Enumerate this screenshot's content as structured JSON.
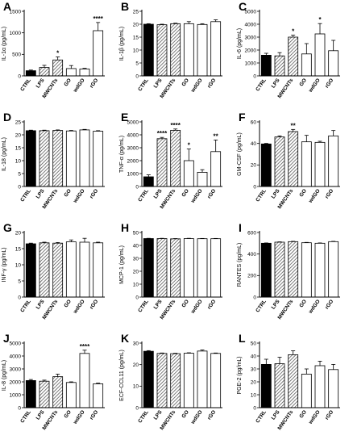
{
  "colors": {
    "ctrl": "#000000",
    "outline": "#000000",
    "open": "#ffffff"
  },
  "chart_data": [
    {
      "type": "bar",
      "panel": "A",
      "ylabel": "IL-1α (pg/mL)",
      "ylim": [
        0,
        1500
      ],
      "yticks": [
        0,
        500,
        1000,
        1500
      ],
      "categories": [
        "CTRL",
        "LPS",
        "MWCNTs",
        "GO",
        "wdGO",
        "rGO"
      ],
      "values": [
        120,
        195,
        370,
        170,
        160,
        1050
      ],
      "errors": [
        15,
        50,
        70,
        70,
        15,
        190
      ],
      "fills": [
        "black",
        "hatch",
        "hatch",
        "white",
        "white",
        "white"
      ],
      "sig": [
        "",
        "",
        "*",
        "",
        "",
        "****"
      ]
    },
    {
      "type": "bar",
      "panel": "B",
      "ylabel": "IL-1β (pg/mL)",
      "ylim": [
        0,
        25
      ],
      "yticks": [
        0,
        5,
        10,
        15,
        20,
        25
      ],
      "categories": [
        "CTRL",
        "LPS",
        "MWCNTs",
        "GO",
        "wdGO",
        "rGO"
      ],
      "values": [
        20,
        19.8,
        20.2,
        20.2,
        19.9,
        21
      ],
      "errors": [
        0.2,
        0.2,
        0.2,
        0.8,
        0.3,
        0.7
      ],
      "fills": [
        "black",
        "hatch",
        "hatch",
        "white",
        "white",
        "white"
      ],
      "sig": [
        "",
        "",
        "",
        "",
        "",
        ""
      ]
    },
    {
      "type": "bar",
      "panel": "C",
      "ylabel": "IL-6 (pg/mL)",
      "ylim": [
        0,
        5000
      ],
      "yticks": [
        0,
        1000,
        2000,
        3000,
        4000,
        5000
      ],
      "categories": [
        "CTRL",
        "LPS",
        "MWCNTs",
        "GO",
        "wdGO",
        "rGO"
      ],
      "values": [
        1600,
        1550,
        3000,
        1700,
        3250,
        1950
      ],
      "errors": [
        150,
        250,
        150,
        800,
        800,
        800
      ],
      "fills": [
        "black",
        "hatch",
        "hatch",
        "white",
        "white",
        "white"
      ],
      "sig": [
        "",
        "",
        "*",
        "",
        "*",
        ""
      ]
    },
    {
      "type": "bar",
      "panel": "D",
      "ylabel": "IL-18 (pg/mL)",
      "ylim": [
        0,
        25
      ],
      "yticks": [
        0,
        5,
        10,
        15,
        20,
        25
      ],
      "categories": [
        "CTRL",
        "LPS",
        "MWCNTs",
        "GO",
        "wdGO",
        "rGO"
      ],
      "values": [
        21.6,
        21.6,
        21.7,
        21.5,
        21.9,
        21.4
      ],
      "errors": [
        0.2,
        0.2,
        0.2,
        0.2,
        0.2,
        0.2
      ],
      "fills": [
        "black",
        "hatch",
        "hatch",
        "white",
        "white",
        "white"
      ],
      "sig": [
        "",
        "",
        "",
        "",
        "",
        ""
      ]
    },
    {
      "type": "bar",
      "panel": "E",
      "ylabel": "TNF-α (pg/mL)",
      "ylim": [
        0,
        5000
      ],
      "yticks": [
        0,
        1000,
        2000,
        3000,
        4000,
        5000
      ],
      "categories": [
        "CTRL",
        "LPS",
        "MWCNTs",
        "GO",
        "wdGO",
        "rGO"
      ],
      "values": [
        750,
        3700,
        4350,
        2000,
        1100,
        2700
      ],
      "errors": [
        150,
        100,
        100,
        900,
        200,
        900
      ],
      "fills": [
        "black",
        "hatch",
        "hatch",
        "white",
        "white",
        "white"
      ],
      "sig": [
        "",
        "****",
        "****",
        "*",
        "",
        "**"
      ]
    },
    {
      "type": "bar",
      "panel": "F",
      "ylabel": "GM-CSF (pg/mL)",
      "ylim": [
        0,
        60
      ],
      "yticks": [
        0,
        20,
        40,
        60
      ],
      "categories": [
        "CTRL",
        "LPS",
        "MWCNTs",
        "GO",
        "wdGO",
        "rGO"
      ],
      "values": [
        39.5,
        46,
        51,
        41.5,
        41,
        47
      ],
      "errors": [
        0.5,
        1,
        2,
        6,
        1,
        5
      ],
      "fills": [
        "black",
        "hatch",
        "hatch",
        "white",
        "white",
        "white"
      ],
      "sig": [
        "",
        "",
        "**",
        "",
        "",
        ""
      ]
    },
    {
      "type": "bar",
      "panel": "G",
      "ylabel": "INF-γ (pg/mL)",
      "ylim": [
        0,
        20
      ],
      "yticks": [
        0,
        5,
        10,
        15,
        20
      ],
      "categories": [
        "CTRL",
        "LPS",
        "MWCNTs",
        "GO",
        "wdGO",
        "rGO"
      ],
      "values": [
        16.5,
        16.8,
        16.7,
        17.1,
        17,
        16.8
      ],
      "errors": [
        0.2,
        0.2,
        0.2,
        0.6,
        1.2,
        0.2
      ],
      "fills": [
        "black",
        "hatch",
        "hatch",
        "white",
        "white",
        "white"
      ],
      "sig": [
        "",
        "",
        "",
        "",
        "",
        ""
      ]
    },
    {
      "type": "bar",
      "panel": "H",
      "ylabel": "MCP-1 (pg/mL)",
      "ylim": [
        0,
        50
      ],
      "yticks": [
        0,
        10,
        20,
        30,
        40,
        50
      ],
      "categories": [
        "CTRL",
        "LPS",
        "MWCNTs",
        "GO",
        "wdGO",
        "rGO"
      ],
      "values": [
        45.3,
        45.3,
        45.1,
        45.3,
        45.2,
        45.2
      ],
      "errors": [
        0.2,
        0.2,
        0.2,
        0.2,
        0.2,
        0.2
      ],
      "fills": [
        "black",
        "hatch",
        "hatch",
        "white",
        "white",
        "white"
      ],
      "sig": [
        "",
        "",
        "",
        "",
        "",
        ""
      ]
    },
    {
      "type": "bar",
      "panel": "I",
      "ylabel": "RANTES (pg/mL)",
      "ylim": [
        0,
        600
      ],
      "yticks": [
        0,
        200,
        400,
        600
      ],
      "categories": [
        "CTRL",
        "LPS",
        "MWCNTs",
        "GO",
        "wdGO",
        "rGO"
      ],
      "values": [
        500,
        510,
        515,
        505,
        500,
        515
      ],
      "errors": [
        3,
        3,
        3,
        3,
        3,
        3
      ],
      "fills": [
        "black",
        "hatch",
        "hatch",
        "white",
        "white",
        "white"
      ],
      "sig": [
        "",
        "",
        "",
        "",
        "",
        ""
      ]
    },
    {
      "type": "bar",
      "panel": "J",
      "ylabel": "IL-8 (pg/mL)",
      "ylim": [
        0,
        5000
      ],
      "yticks": [
        0,
        1000,
        2000,
        3000,
        4000,
        5000
      ],
      "categories": [
        "CTRL",
        "LPS",
        "MWCNTs",
        "GO",
        "wdGO",
        "rGO"
      ],
      "values": [
        2100,
        2050,
        2400,
        1950,
        4200,
        1850
      ],
      "errors": [
        80,
        80,
        200,
        50,
        250,
        50
      ],
      "fills": [
        "black",
        "hatch",
        "hatch",
        "white",
        "white",
        "white"
      ],
      "sig": [
        "",
        "",
        "",
        "",
        "****",
        ""
      ]
    },
    {
      "type": "bar",
      "panel": "K",
      "ylabel": "ECF-CCL11 (pg/mL)",
      "ylim": [
        0,
        30
      ],
      "yticks": [
        0,
        10,
        20,
        30
      ],
      "categories": [
        "CTRL",
        "LPS",
        "MWCNTs",
        "GO",
        "wdGO",
        "rGO"
      ],
      "values": [
        26.2,
        25.2,
        25.1,
        25.3,
        26.3,
        25.2
      ],
      "errors": [
        0.3,
        0.2,
        0.2,
        0.2,
        0.5,
        0.2
      ],
      "fills": [
        "black",
        "hatch",
        "hatch",
        "white",
        "white",
        "white"
      ],
      "sig": [
        "",
        "",
        "",
        "",
        "",
        ""
      ]
    },
    {
      "type": "bar",
      "panel": "L",
      "ylabel": "PGE-2 (pg/mL)",
      "ylim": [
        0,
        50
      ],
      "yticks": [
        0,
        10,
        20,
        30,
        40,
        50
      ],
      "categories": [
        "CTRL",
        "LPS",
        "MWCNTs",
        "GO",
        "wdGO",
        "rGO"
      ],
      "values": [
        33.5,
        34,
        41,
        26,
        32.5,
        29.5
      ],
      "errors": [
        4,
        5,
        3,
        4,
        3.5,
        4
      ],
      "fills": [
        "black",
        "hatch",
        "hatch",
        "white",
        "white",
        "white"
      ],
      "sig": [
        "",
        "",
        "",
        "",
        "",
        ""
      ]
    }
  ]
}
